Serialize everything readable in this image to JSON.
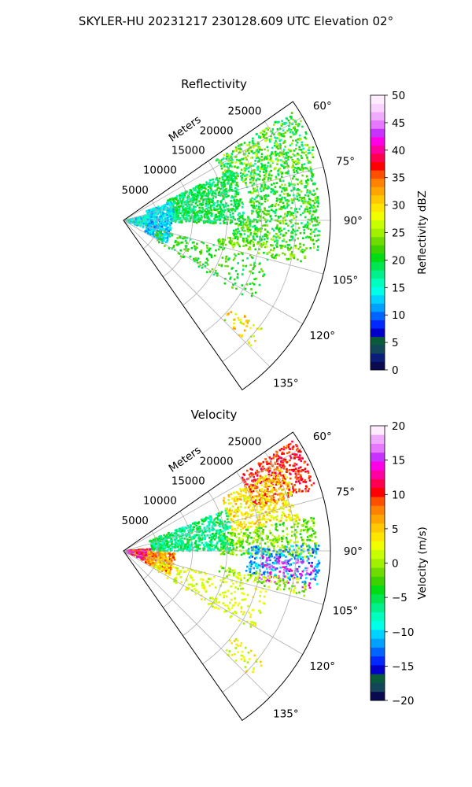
{
  "figure": {
    "title": "SKYLER-HU  20231217  230128.609 UTC Elevation 02°"
  },
  "chart_data": [
    {
      "type": "heatmap",
      "subtype": "polar-sector",
      "title": "Reflectivity",
      "range_axis_label": "Meters",
      "range_ticks": [
        5000,
        10000,
        15000,
        20000,
        25000
      ],
      "range_tick_labels": [
        "5000",
        "10000",
        "15000",
        "20000",
        "25000"
      ],
      "range_max": 30000,
      "azimuth_range": [
        55,
        145
      ],
      "azimuth_ticks": [
        60,
        75,
        90,
        105,
        120,
        135
      ],
      "azimuth_tick_labels": [
        "60°",
        "75°",
        "90°",
        "105°",
        "120°",
        "135°"
      ],
      "grid": true,
      "colorbar": {
        "label": "Reflectivity dBZ",
        "min": 0,
        "max": 50,
        "ticks": [
          0,
          5,
          10,
          15,
          20,
          25,
          30,
          35,
          40,
          45,
          50
        ],
        "tick_labels": [
          "0",
          "5",
          "10",
          "15",
          "20",
          "25",
          "30",
          "35",
          "40",
          "45",
          "50"
        ],
        "colors": [
          "#0a0a50",
          "#0a1e78",
          "#14465a",
          "#0a5a3c",
          "#0000c8",
          "#0028ff",
          "#0064ff",
          "#00a0ff",
          "#00d2ff",
          "#00ffe6",
          "#00ffbe",
          "#00f08c",
          "#00e650",
          "#00dc14",
          "#3cd200",
          "#6edc00",
          "#a0f000",
          "#c8ff00",
          "#f0ff00",
          "#ffe600",
          "#ffc800",
          "#ffa500",
          "#ff8200",
          "#ff5000",
          "#ff0000",
          "#ff0050",
          "#ff00a0",
          "#ff00e6",
          "#c832ff",
          "#e678ff",
          "#f0aaff",
          "#fad2ff",
          "#ffecff"
        ]
      },
      "echoes": [
        {
          "az": [
            57,
            72
          ],
          "r": [
            16000,
            29500
          ],
          "v": [
            16,
            27
          ],
          "density": 0.55
        },
        {
          "az": [
            72,
            88
          ],
          "r": [
            18500,
            28500
          ],
          "v": [
            17,
            25
          ],
          "density": 0.5
        },
        {
          "az": [
            88,
            100
          ],
          "r": [
            16000,
            28500
          ],
          "v": [
            17,
            25
          ],
          "density": 0.45
        },
        {
          "az": [
            65,
            92
          ],
          "r": [
            7000,
            17500
          ],
          "v": [
            16,
            22
          ],
          "density": 0.6
        },
        {
          "az": [
            68,
            90
          ],
          "r": [
            3500,
            7500
          ],
          "v": [
            11,
            17
          ],
          "density": 0.55
        },
        {
          "az": [
            78,
            110
          ],
          "r": [
            200,
            3800
          ],
          "v": [
            11,
            18
          ],
          "density": 0.4
        },
        {
          "az": [
            88,
            118
          ],
          "r": [
            3500,
            7000
          ],
          "v": [
            10,
            15
          ],
          "density": 0.5
        },
        {
          "az": [
            105,
            122
          ],
          "r": [
            5000,
            22000
          ],
          "v": [
            18,
            24
          ],
          "density": 0.15
        },
        {
          "az": [
            99,
            104
          ],
          "r": [
            14000,
            27000
          ],
          "v": [
            20,
            26
          ],
          "density": 0.35
        },
        {
          "az": [
            128,
            135
          ],
          "r": [
            20000,
            26000
          ],
          "v": [
            24,
            34
          ],
          "density": 0.2
        }
      ]
    },
    {
      "type": "heatmap",
      "subtype": "polar-sector",
      "title": "Velocity",
      "range_axis_label": "Meters",
      "range_ticks": [
        5000,
        10000,
        15000,
        20000,
        25000
      ],
      "range_tick_labels": [
        "5000",
        "10000",
        "15000",
        "20000",
        "25000"
      ],
      "range_max": 30000,
      "azimuth_range": [
        55,
        145
      ],
      "azimuth_ticks": [
        60,
        75,
        90,
        105,
        120,
        135
      ],
      "azimuth_tick_labels": [
        "60°",
        "75°",
        "90°",
        "105°",
        "120°",
        "135°"
      ],
      "grid": true,
      "colorbar": {
        "label": "Velocity (m/s)",
        "min": -20,
        "max": 20,
        "ticks": [
          -20,
          -15,
          -10,
          -5,
          0,
          5,
          10,
          15,
          20
        ],
        "tick_labels": [
          "−20",
          "−15",
          "−10",
          "−5",
          "0",
          "5",
          "10",
          "15",
          "20"
        ],
        "colors": [
          "#0a0a50",
          "#14465a",
          "#0a5a3c",
          "#0000c8",
          "#0028ff",
          "#0064ff",
          "#00a0ff",
          "#00d2ff",
          "#00ffe6",
          "#00ffbe",
          "#00f08c",
          "#00e650",
          "#00dc14",
          "#3cd200",
          "#6edc00",
          "#a0f000",
          "#c8ff00",
          "#f0ff00",
          "#ffe600",
          "#ffc800",
          "#ffa500",
          "#ff8200",
          "#ff5000",
          "#ff0000",
          "#ff0050",
          "#ff00a0",
          "#ff00e6",
          "#c832ff",
          "#e678ff",
          "#f0aaff",
          "#ffecff"
        ]
      },
      "echoes": [
        {
          "az": [
            57,
            72
          ],
          "r": [
            20000,
            29500
          ],
          "v": [
            8,
            12
          ],
          "density": 0.6
        },
        {
          "az": [
            62,
            80
          ],
          "r": [
            16000,
            26000
          ],
          "v": [
            1,
            7
          ],
          "density": 0.5
        },
        {
          "az": [
            80,
            92
          ],
          "r": [
            14000,
            28000
          ],
          "v": [
            -4,
            2
          ],
          "density": 0.5
        },
        {
          "az": [
            68,
            90
          ],
          "r": [
            4000,
            16000
          ],
          "v": [
            -9,
            -3
          ],
          "density": 0.55
        },
        {
          "az": [
            88,
            100
          ],
          "r": [
            18000,
            28500
          ],
          "v": [
            -14,
            -9
          ],
          "density": 0.4
        },
        {
          "az": [
            92,
            102
          ],
          "r": [
            20000,
            28000
          ],
          "v": [
            13,
            17
          ],
          "density": 0.25
        },
        {
          "az": [
            85,
            115
          ],
          "r": [
            200,
            4000
          ],
          "v": [
            8,
            16
          ],
          "density": 0.45
        },
        {
          "az": [
            92,
            118
          ],
          "r": [
            3500,
            7500
          ],
          "v": [
            4,
            10
          ],
          "density": 0.5
        },
        {
          "az": [
            105,
            122
          ],
          "r": [
            5000,
            22000
          ],
          "v": [
            0,
            4
          ],
          "density": 0.15
        },
        {
          "az": [
            99,
            104
          ],
          "r": [
            14000,
            27000
          ],
          "v": [
            -3,
            3
          ],
          "density": 0.35
        },
        {
          "az": [
            128,
            135
          ],
          "r": [
            20000,
            26000
          ],
          "v": [
            0,
            5
          ],
          "density": 0.2
        }
      ]
    }
  ]
}
